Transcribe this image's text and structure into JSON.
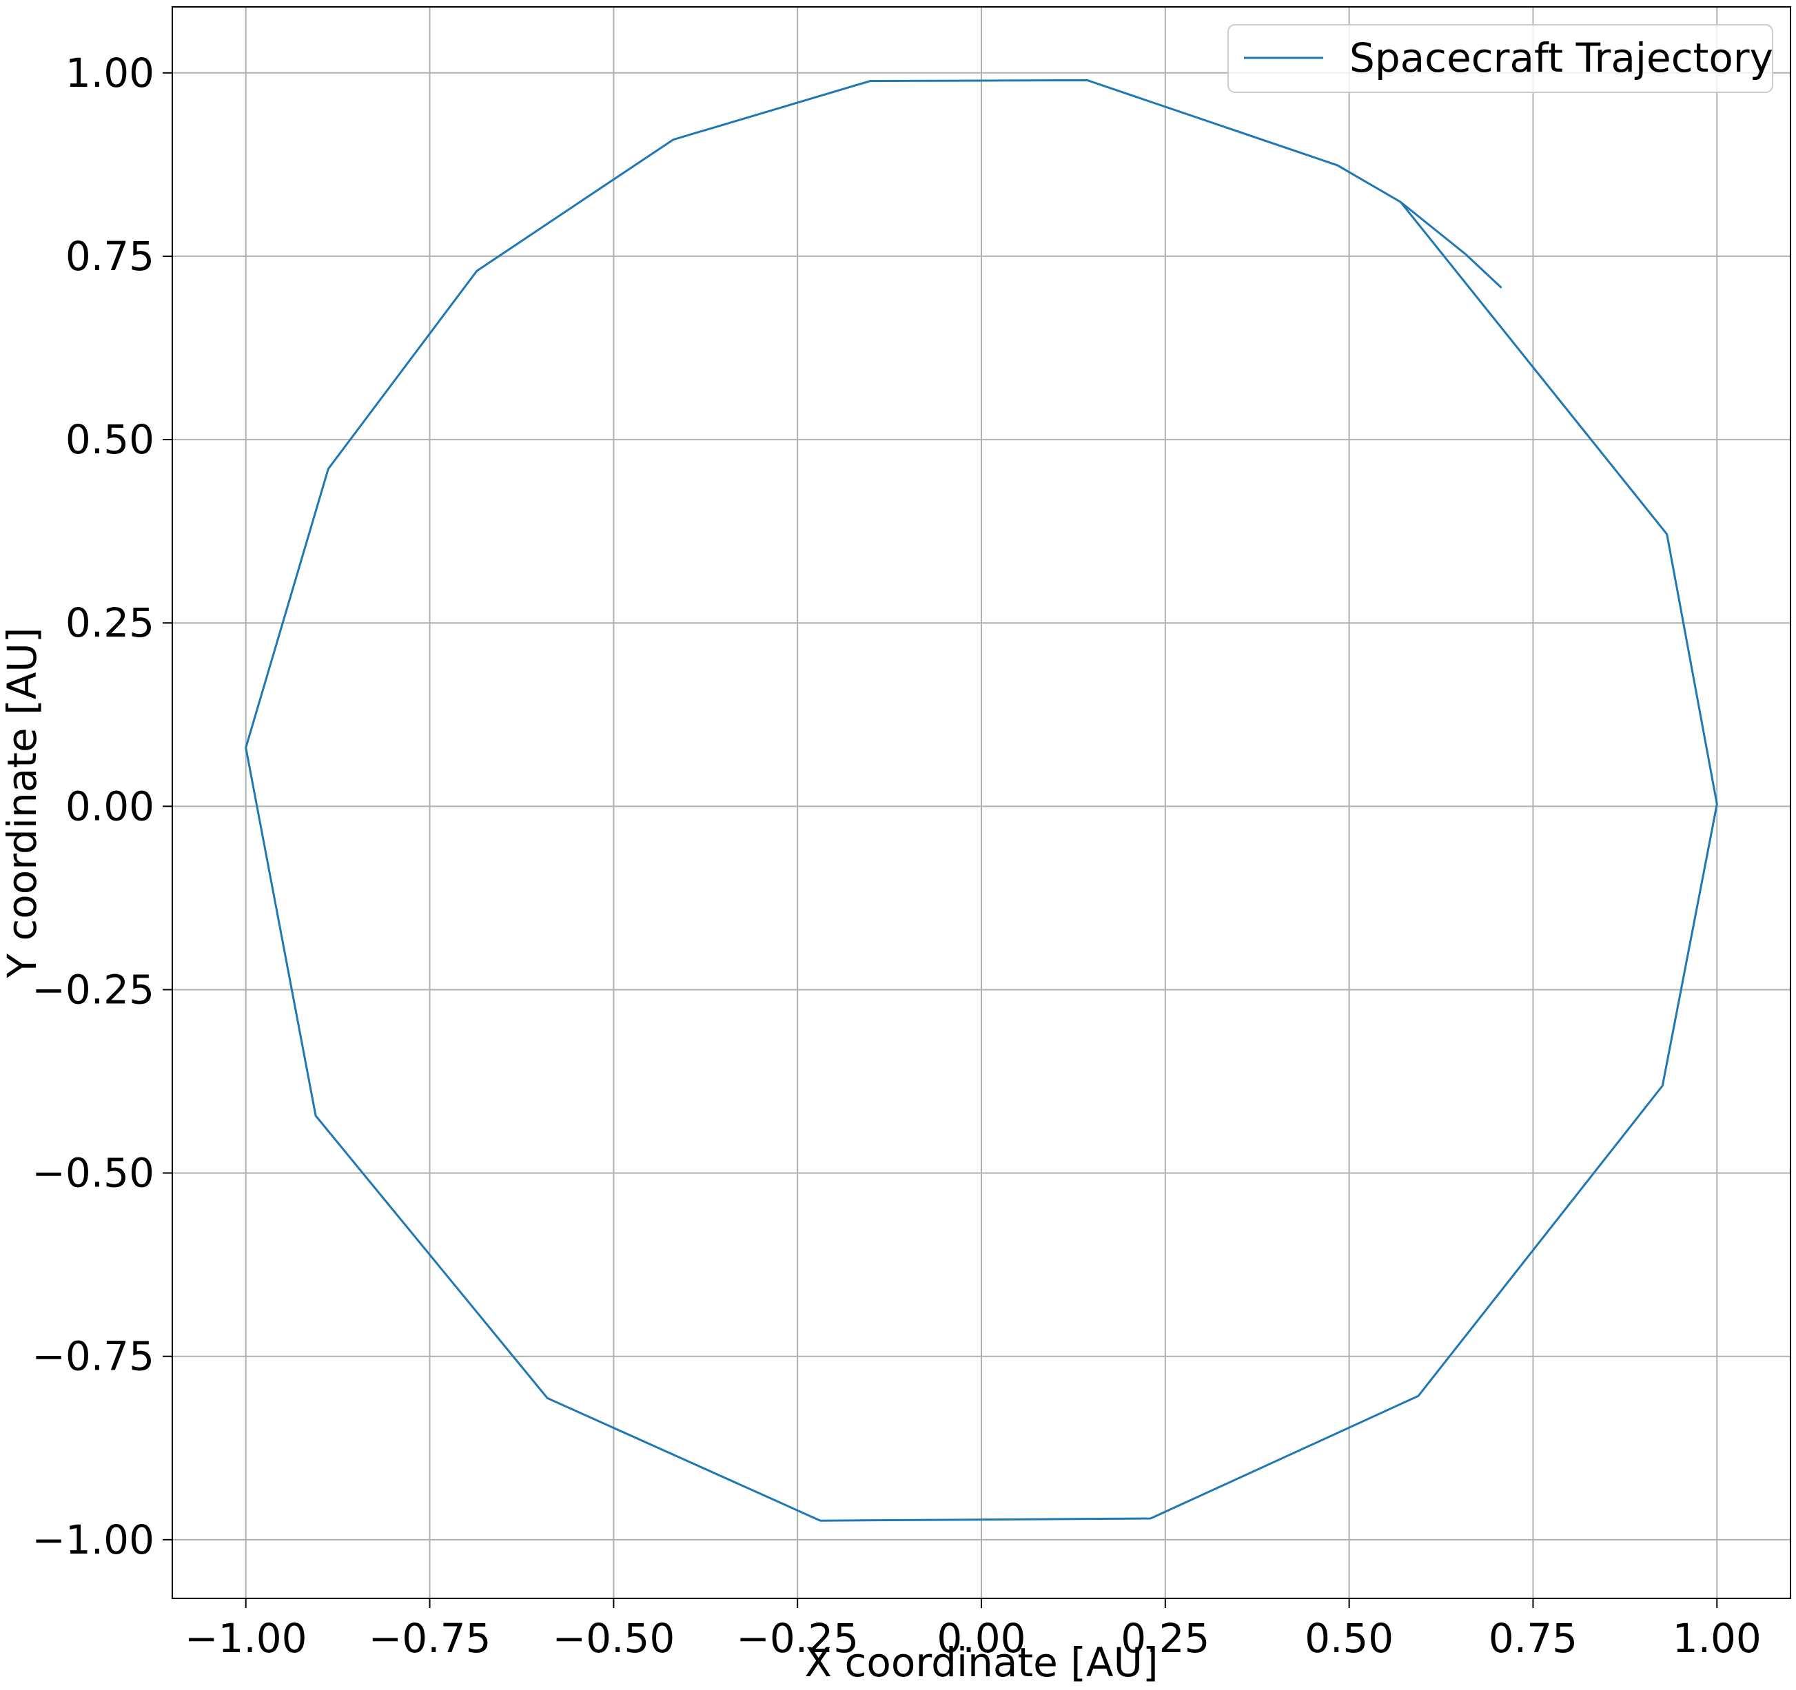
{
  "chart_data": {
    "type": "line",
    "title": "",
    "xlabel": "X coordinate [AU]",
    "ylabel": "Y coordinate [AU]",
    "xlim": [
      -1.1,
      1.1
    ],
    "ylim": [
      -1.08,
      1.09
    ],
    "xticks": [
      -1.0,
      -0.75,
      -0.5,
      -0.25,
      0.0,
      0.25,
      0.5,
      0.75,
      1.0
    ],
    "yticks": [
      -1.0,
      -0.75,
      -0.5,
      -0.25,
      0.0,
      0.25,
      0.5,
      0.75,
      1.0
    ],
    "xtick_labels": [
      "−1.00",
      "−0.75",
      "−0.50",
      "−0.25",
      "0.00",
      "0.25",
      "0.50",
      "0.75",
      "1.00"
    ],
    "ytick_labels": [
      "−1.00",
      "−0.75",
      "−0.50",
      "−0.25",
      "0.00",
      "0.25",
      "0.50",
      "0.75",
      "1.00"
    ],
    "grid": true,
    "legend_position": "top-right",
    "series": [
      {
        "name": "Spacecraft Trajectory",
        "color": "#1f77b4",
        "x": [
          0.707,
          0.658,
          0.57,
          0.484,
          0.144,
          -0.151,
          -0.419,
          -0.686,
          -0.888,
          -1.0,
          -0.905,
          -0.59,
          -0.219,
          0.23,
          0.594,
          0.926,
          1.0,
          0.932,
          0.57
        ],
        "y": [
          0.707,
          0.753,
          0.824,
          0.874,
          0.99,
          0.989,
          0.909,
          0.73,
          0.46,
          0.08,
          -0.422,
          -0.807,
          -0.974,
          -0.971,
          -0.804,
          -0.381,
          0.003,
          0.371,
          0.824
        ]
      }
    ]
  }
}
